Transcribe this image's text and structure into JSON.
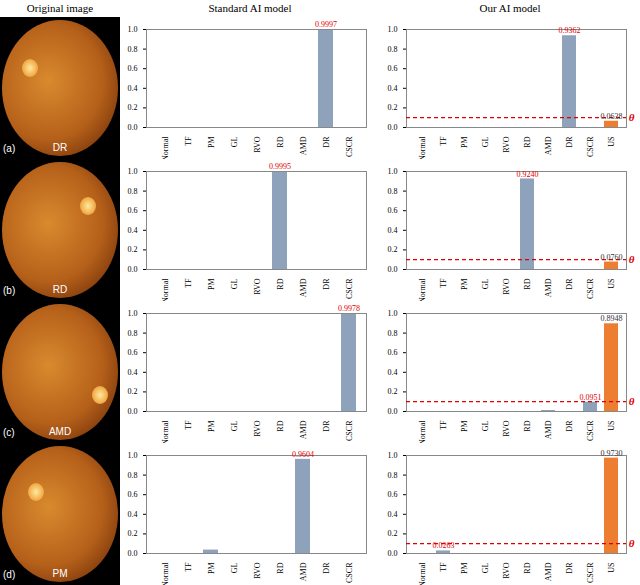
{
  "column_titles": [
    "Original image",
    "Standard AI model",
    "Our AI model"
  ],
  "rows": [
    {
      "panel": "(a)",
      "image_label": "DR"
    },
    {
      "panel": "(b)",
      "image_label": "RD"
    },
    {
      "panel": "(c)",
      "image_label": "AMD"
    },
    {
      "panel": "(d)",
      "image_label": "PM"
    }
  ],
  "chart_data": [
    {
      "type": "bar",
      "categories": [
        "Normal",
        "TF",
        "PM",
        "GL",
        "RVO",
        "RD",
        "AMD",
        "DR",
        "CSCR"
      ],
      "values": [
        0,
        0,
        0,
        0,
        0,
        0,
        0,
        0.9997,
        0
      ],
      "value_labels": [
        null,
        null,
        null,
        null,
        null,
        null,
        null,
        "0.9997",
        null
      ],
      "colors": [
        "#8ea2bb",
        "#8ea2bb",
        "#8ea2bb",
        "#8ea2bb",
        "#8ea2bb",
        "#8ea2bb",
        "#8ea2bb",
        "#8ea2bb",
        "#8ea2bb"
      ],
      "ylim": [
        0,
        1
      ],
      "yticks": [
        {
          "value": 0,
          "label": "0.0"
        },
        {
          "value": 0.2,
          "label": "0.2"
        },
        {
          "value": 0.4,
          "label": "0.4"
        },
        {
          "value": 0.6,
          "label": "0.6"
        },
        {
          "value": 0.8,
          "label": "0.8"
        },
        {
          "value": 1,
          "label": "1.0"
        }
      ]
    },
    {
      "type": "bar",
      "categories": [
        "Normal",
        "TF",
        "PM",
        "GL",
        "RVO",
        "RD",
        "AMD",
        "DR",
        "CSCR",
        "US"
      ],
      "values": [
        0,
        0,
        0,
        0,
        0,
        0,
        0,
        0.9362,
        0,
        0.0638
      ],
      "value_labels": [
        null,
        null,
        null,
        null,
        null,
        null,
        null,
        "0.9362",
        null,
        "0.0638"
      ],
      "colors": [
        "#8ea2bb",
        "#8ea2bb",
        "#8ea2bb",
        "#8ea2bb",
        "#8ea2bb",
        "#8ea2bb",
        "#8ea2bb",
        "#8ea2bb",
        "#8ea2bb",
        "#ed7d31"
      ],
      "threshold": {
        "value": 0.1,
        "label": "θ"
      },
      "ylim": [
        0,
        1
      ],
      "yticks": [
        {
          "value": 0,
          "label": "0.0"
        },
        {
          "value": 0.2,
          "label": "0.2"
        },
        {
          "value": 0.4,
          "label": "0.4"
        },
        {
          "value": 0.6,
          "label": "0.6"
        },
        {
          "value": 0.8,
          "label": "0.8"
        },
        {
          "value": 1,
          "label": "1.0"
        }
      ]
    },
    {
      "type": "bar",
      "categories": [
        "Normal",
        "TF",
        "PM",
        "GL",
        "RVO",
        "RD",
        "AMD",
        "DR",
        "CSCR"
      ],
      "values": [
        0,
        0,
        0,
        0,
        0,
        0.9995,
        0,
        0,
        0
      ],
      "value_labels": [
        null,
        null,
        null,
        null,
        null,
        "0.9995",
        null,
        null,
        null
      ],
      "colors": [
        "#8ea2bb",
        "#8ea2bb",
        "#8ea2bb",
        "#8ea2bb",
        "#8ea2bb",
        "#8ea2bb",
        "#8ea2bb",
        "#8ea2bb",
        "#8ea2bb"
      ],
      "ylim": [
        0,
        1
      ],
      "yticks": [
        {
          "value": 0,
          "label": "0.0"
        },
        {
          "value": 0.2,
          "label": "0.2"
        },
        {
          "value": 0.4,
          "label": "0.4"
        },
        {
          "value": 0.6,
          "label": "0.6"
        },
        {
          "value": 0.8,
          "label": "0.8"
        },
        {
          "value": 1,
          "label": "1.0"
        }
      ]
    },
    {
      "type": "bar",
      "categories": [
        "Normal",
        "TF",
        "PM",
        "GL",
        "RVO",
        "RD",
        "AMD",
        "DR",
        "CSCR",
        "US"
      ],
      "values": [
        0,
        0,
        0,
        0,
        0,
        0.924,
        0,
        0,
        0,
        0.076
      ],
      "value_labels": [
        null,
        null,
        null,
        null,
        null,
        "0.9240",
        null,
        null,
        null,
        "0.0760"
      ],
      "colors": [
        "#8ea2bb",
        "#8ea2bb",
        "#8ea2bb",
        "#8ea2bb",
        "#8ea2bb",
        "#8ea2bb",
        "#8ea2bb",
        "#8ea2bb",
        "#8ea2bb",
        "#ed7d31"
      ],
      "threshold": {
        "value": 0.1,
        "label": "θ"
      },
      "ylim": [
        0,
        1
      ],
      "yticks": [
        {
          "value": 0,
          "label": "0.0"
        },
        {
          "value": 0.2,
          "label": "0.2"
        },
        {
          "value": 0.4,
          "label": "0.4"
        },
        {
          "value": 0.6,
          "label": "0.6"
        },
        {
          "value": 0.8,
          "label": "0.8"
        },
        {
          "value": 1,
          "label": "1.0"
        }
      ]
    },
    {
      "type": "bar",
      "categories": [
        "Normal",
        "TF",
        "PM",
        "GL",
        "RVO",
        "RD",
        "AMD",
        "DR",
        "CSCR"
      ],
      "values": [
        0,
        0,
        0,
        0,
        0,
        0,
        0,
        0,
        0.9978
      ],
      "value_labels": [
        null,
        null,
        null,
        null,
        null,
        null,
        null,
        null,
        "0.9978"
      ],
      "colors": [
        "#8ea2bb",
        "#8ea2bb",
        "#8ea2bb",
        "#8ea2bb",
        "#8ea2bb",
        "#8ea2bb",
        "#8ea2bb",
        "#8ea2bb",
        "#8ea2bb"
      ],
      "ylim": [
        0,
        1
      ],
      "yticks": [
        {
          "value": 0,
          "label": "0.0"
        },
        {
          "value": 0.2,
          "label": "0.2"
        },
        {
          "value": 0.4,
          "label": "0.4"
        },
        {
          "value": 0.6,
          "label": "0.6"
        },
        {
          "value": 0.8,
          "label": "0.8"
        },
        {
          "value": 1,
          "label": "1.0"
        }
      ]
    },
    {
      "type": "bar",
      "categories": [
        "Normal",
        "TF",
        "PM",
        "GL",
        "RVO",
        "RD",
        "AMD",
        "DR",
        "CSCR",
        "US"
      ],
      "values": [
        0,
        0,
        0,
        0,
        0,
        0,
        0.01,
        0,
        0.0951,
        0.8948
      ],
      "value_labels": [
        null,
        null,
        null,
        null,
        null,
        null,
        null,
        null,
        "0.0951",
        "0.8948"
      ],
      "colors": [
        "#8ea2bb",
        "#8ea2bb",
        "#8ea2bb",
        "#8ea2bb",
        "#8ea2bb",
        "#8ea2bb",
        "#8ea2bb",
        "#8ea2bb",
        "#8ea2bb",
        "#ed7d31"
      ],
      "threshold": {
        "value": 0.1,
        "label": "θ"
      },
      "ylim": [
        0,
        1
      ],
      "yticks": [
        {
          "value": 0,
          "label": "0.0"
        },
        {
          "value": 0.2,
          "label": "0.2"
        },
        {
          "value": 0.4,
          "label": "0.4"
        },
        {
          "value": 0.6,
          "label": "0.6"
        },
        {
          "value": 0.8,
          "label": "0.8"
        },
        {
          "value": 1,
          "label": "1.0"
        }
      ]
    },
    {
      "type": "bar",
      "categories": [
        "Normal",
        "TF",
        "PM",
        "GL",
        "RVO",
        "RD",
        "AMD",
        "DR",
        "CSCR"
      ],
      "values": [
        0,
        0,
        0.035,
        0,
        0,
        0,
        0.9604,
        0,
        0
      ],
      "value_labels": [
        null,
        null,
        null,
        null,
        null,
        null,
        "0.9604",
        null,
        null
      ],
      "colors": [
        "#8ea2bb",
        "#8ea2bb",
        "#8ea2bb",
        "#8ea2bb",
        "#8ea2bb",
        "#8ea2bb",
        "#8ea2bb",
        "#8ea2bb",
        "#8ea2bb"
      ],
      "ylim": [
        0,
        1
      ],
      "yticks": [
        {
          "value": 0,
          "label": "0.0"
        },
        {
          "value": 0.2,
          "label": "0.2"
        },
        {
          "value": 0.4,
          "label": "0.4"
        },
        {
          "value": 0.6,
          "label": "0.6"
        },
        {
          "value": 0.8,
          "label": "0.8"
        },
        {
          "value": 1,
          "label": "1.0"
        }
      ]
    },
    {
      "type": "bar",
      "categories": [
        "Normal",
        "TF",
        "PM",
        "GL",
        "RVO",
        "RD",
        "AMD",
        "DR",
        "CSCR",
        "US"
      ],
      "values": [
        0,
        0.0263,
        0,
        0,
        0,
        0,
        0,
        0,
        0,
        0.973
      ],
      "value_labels": [
        null,
        "0.0263",
        null,
        null,
        null,
        null,
        null,
        null,
        null,
        "0.9730"
      ],
      "colors": [
        "#8ea2bb",
        "#8ea2bb",
        "#8ea2bb",
        "#8ea2bb",
        "#8ea2bb",
        "#8ea2bb",
        "#8ea2bb",
        "#8ea2bb",
        "#8ea2bb",
        "#ed7d31"
      ],
      "threshold": {
        "value": 0.1,
        "label": "θ"
      },
      "ylim": [
        0,
        1
      ],
      "yticks": [
        {
          "value": 0,
          "label": "0.0"
        },
        {
          "value": 0.2,
          "label": "0.2"
        },
        {
          "value": 0.4,
          "label": "0.4"
        },
        {
          "value": 0.6,
          "label": "0.6"
        },
        {
          "value": 0.8,
          "label": "0.8"
        },
        {
          "value": 1,
          "label": "1.0"
        }
      ]
    }
  ]
}
